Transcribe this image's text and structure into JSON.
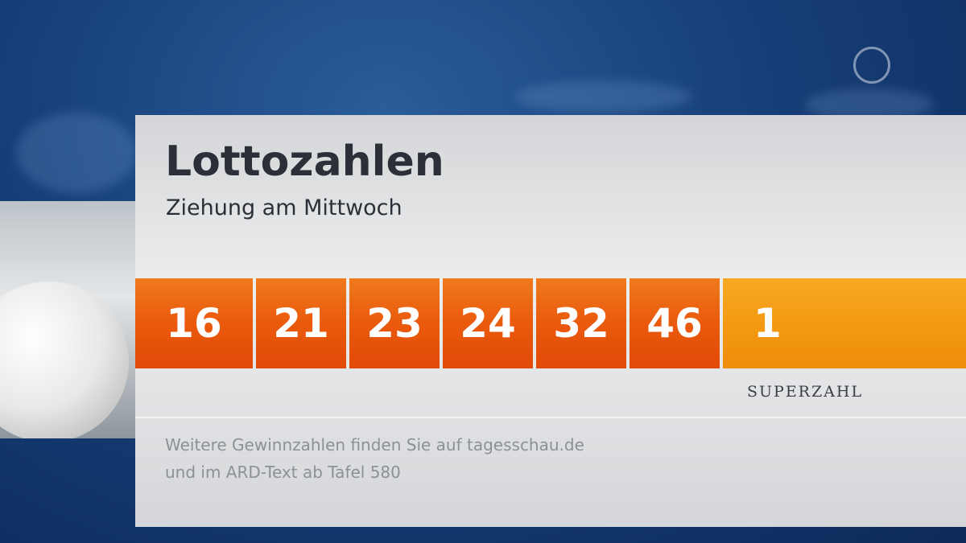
{
  "header": {
    "title": "Lottozahlen",
    "subtitle": "Ziehung am Mittwoch"
  },
  "numbers": [
    16,
    21,
    23,
    24,
    32,
    46
  ],
  "superzahl": {
    "value": 1,
    "label": "SUPERZAHL"
  },
  "footer": [
    "Weitere Gewinnzahlen finden Sie auf tagesschau.de",
    "und im ARD-Text ab Tafel 580"
  ]
}
